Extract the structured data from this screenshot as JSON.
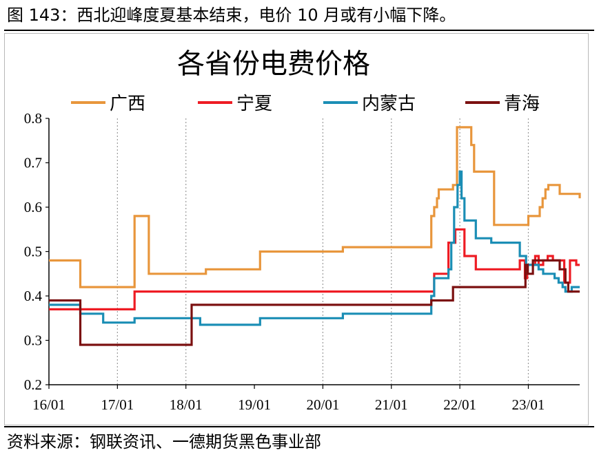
{
  "caption": "图 143：西北迎峰度夏基本结束，电价 10 月或有小幅下降。",
  "source": "资料来源：钢联资讯、一德期货黑色事业部",
  "colors": {
    "guangxi": "#E8963C",
    "ningxia": "#EE1C24",
    "neimenggu": "#1B8EB5",
    "qinghai": "#7B1010"
  },
  "chart_data": {
    "type": "line",
    "title": "各省份电费价格",
    "xlabel": "",
    "ylabel": "",
    "x_unit": "month-index from 2016-01",
    "x_range": [
      0,
      93
    ],
    "ylim": [
      0.2,
      0.8
    ],
    "y_ticks": [
      "0.2",
      "0.3",
      "0.4",
      "0.5",
      "0.6",
      "0.7",
      "0.8"
    ],
    "x_ticks": [
      {
        "x": 0,
        "label": "16/01"
      },
      {
        "x": 12,
        "label": "17/01"
      },
      {
        "x": 24,
        "label": "18/01"
      },
      {
        "x": 36,
        "label": "19/01"
      },
      {
        "x": 48,
        "label": "20/01"
      },
      {
        "x": 60,
        "label": "21/01"
      },
      {
        "x": 72,
        "label": "22/01"
      },
      {
        "x": 84,
        "label": "23/01"
      }
    ],
    "vgrid_dotted": [
      12,
      24,
      48,
      60,
      72,
      84
    ],
    "legend_position": "top",
    "series": [
      {
        "name": "广西",
        "color_key": "guangxi",
        "step": true,
        "points": [
          [
            0,
            0.48
          ],
          [
            5.5,
            0.42
          ],
          [
            15,
            0.58
          ],
          [
            17.5,
            0.45
          ],
          [
            27.5,
            0.46
          ],
          [
            37,
            0.5
          ],
          [
            51.5,
            0.51
          ],
          [
            67,
            0.58
          ],
          [
            67.5,
            0.6
          ],
          [
            68,
            0.62
          ],
          [
            68.3,
            0.64
          ],
          [
            70.8,
            0.65
          ],
          [
            71.5,
            0.78
          ],
          [
            74,
            0.74
          ],
          [
            74.5,
            0.68
          ],
          [
            78,
            0.56
          ],
          [
            84,
            0.58
          ],
          [
            86,
            0.6
          ],
          [
            86.5,
            0.62
          ],
          [
            87,
            0.64
          ],
          [
            87.5,
            0.65
          ],
          [
            89.5,
            0.63
          ],
          [
            93,
            0.62
          ]
        ]
      },
      {
        "name": "宁夏",
        "color_key": "ningxia",
        "step": true,
        "points": [
          [
            0,
            0.37
          ],
          [
            15,
            0.41
          ],
          [
            67.5,
            0.45
          ],
          [
            70,
            0.52
          ],
          [
            71.2,
            0.55
          ],
          [
            72.8,
            0.49
          ],
          [
            74.8,
            0.46
          ],
          [
            82.5,
            0.48
          ],
          [
            83.4,
            0.44
          ],
          [
            83.8,
            0.47
          ],
          [
            85.2,
            0.49
          ],
          [
            85.8,
            0.47
          ],
          [
            86.6,
            0.48
          ],
          [
            87.4,
            0.49
          ],
          [
            88.3,
            0.48
          ],
          [
            90.3,
            0.43
          ],
          [
            91.3,
            0.48
          ],
          [
            92.4,
            0.47
          ],
          [
            93,
            0.47
          ]
        ]
      },
      {
        "name": "内蒙古",
        "color_key": "neimenggu",
        "step": true,
        "points": [
          [
            0,
            0.38
          ],
          [
            5.5,
            0.36
          ],
          [
            9.5,
            0.34
          ],
          [
            15,
            0.35
          ],
          [
            26.5,
            0.335
          ],
          [
            37,
            0.35
          ],
          [
            51.5,
            0.36
          ],
          [
            67,
            0.4
          ],
          [
            67.5,
            0.44
          ],
          [
            70,
            0.46
          ],
          [
            70.5,
            0.52
          ],
          [
            71,
            0.6
          ],
          [
            71.6,
            0.65
          ],
          [
            72,
            0.68
          ],
          [
            72.3,
            0.62
          ],
          [
            72.8,
            0.57
          ],
          [
            74.8,
            0.53
          ],
          [
            77.5,
            0.52
          ],
          [
            82.5,
            0.49
          ],
          [
            83.6,
            0.47
          ],
          [
            85.8,
            0.46
          ],
          [
            86.6,
            0.45
          ],
          [
            88.6,
            0.44
          ],
          [
            89.3,
            0.43
          ],
          [
            90,
            0.42
          ],
          [
            90.5,
            0.41
          ],
          [
            91.6,
            0.42
          ],
          [
            93,
            0.42
          ]
        ]
      },
      {
        "name": "青海",
        "color_key": "qinghai",
        "step": true,
        "points": [
          [
            0,
            0.39
          ],
          [
            5.5,
            0.29
          ],
          [
            25,
            0.38
          ],
          [
            67,
            0.39
          ],
          [
            70.8,
            0.42
          ],
          [
            83.5,
            0.47
          ],
          [
            83.9,
            0.45
          ],
          [
            84.8,
            0.48
          ],
          [
            89.5,
            0.46
          ],
          [
            90.5,
            0.43
          ],
          [
            91,
            0.41
          ],
          [
            93,
            0.41
          ]
        ]
      }
    ]
  }
}
